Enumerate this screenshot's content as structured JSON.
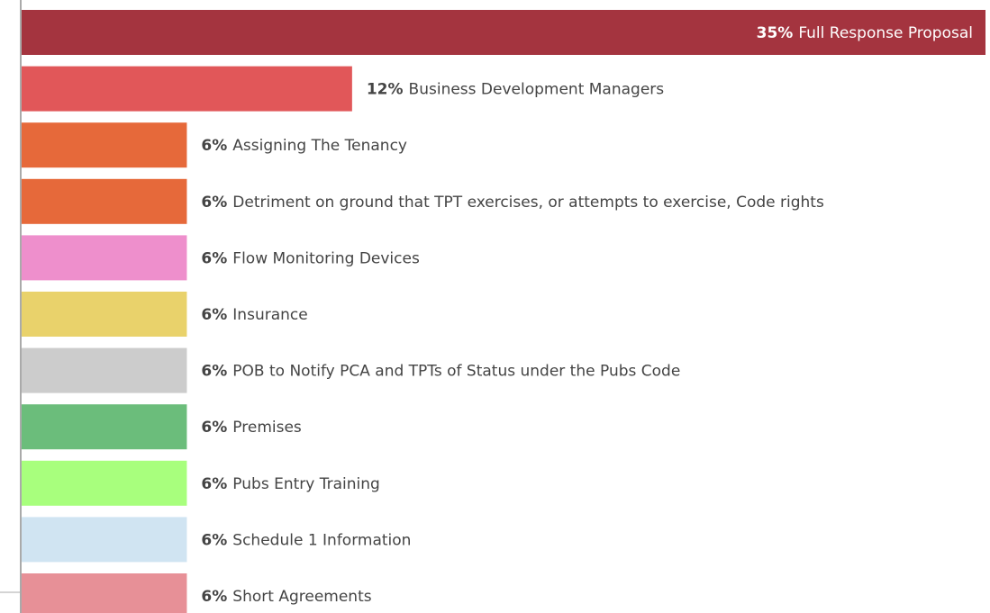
{
  "chart_data": {
    "type": "bar",
    "orientation": "horizontal",
    "categories": [
      "Full Response Proposal",
      "Business Development Managers",
      "Assigning The Tenancy",
      "Detriment on ground that TPT exercises, or attempts to exercise, Code rights",
      "Flow Monitoring Devices",
      "Insurance",
      "POB to Notify PCA and TPTs of Status under the Pubs Code",
      "Premises",
      "Pubs Entry Training",
      "Schedule 1 Information",
      "Short Agreements"
    ],
    "values": [
      35,
      12,
      6,
      6,
      6,
      6,
      6,
      6,
      6,
      6,
      6
    ],
    "value_labels": [
      "35%",
      "12%",
      "6%",
      "6%",
      "6%",
      "6%",
      "6%",
      "6%",
      "6%",
      "6%",
      "6%"
    ],
    "colors": [
      "#a4343f",
      "#e15759",
      "#e6693a",
      "#e6693a",
      "#ee8fcc",
      "#e9d26b",
      "#cccccc",
      "#6bbd7b",
      "#a8ff7d",
      "#d0e4f2",
      "#e79097"
    ]
  }
}
